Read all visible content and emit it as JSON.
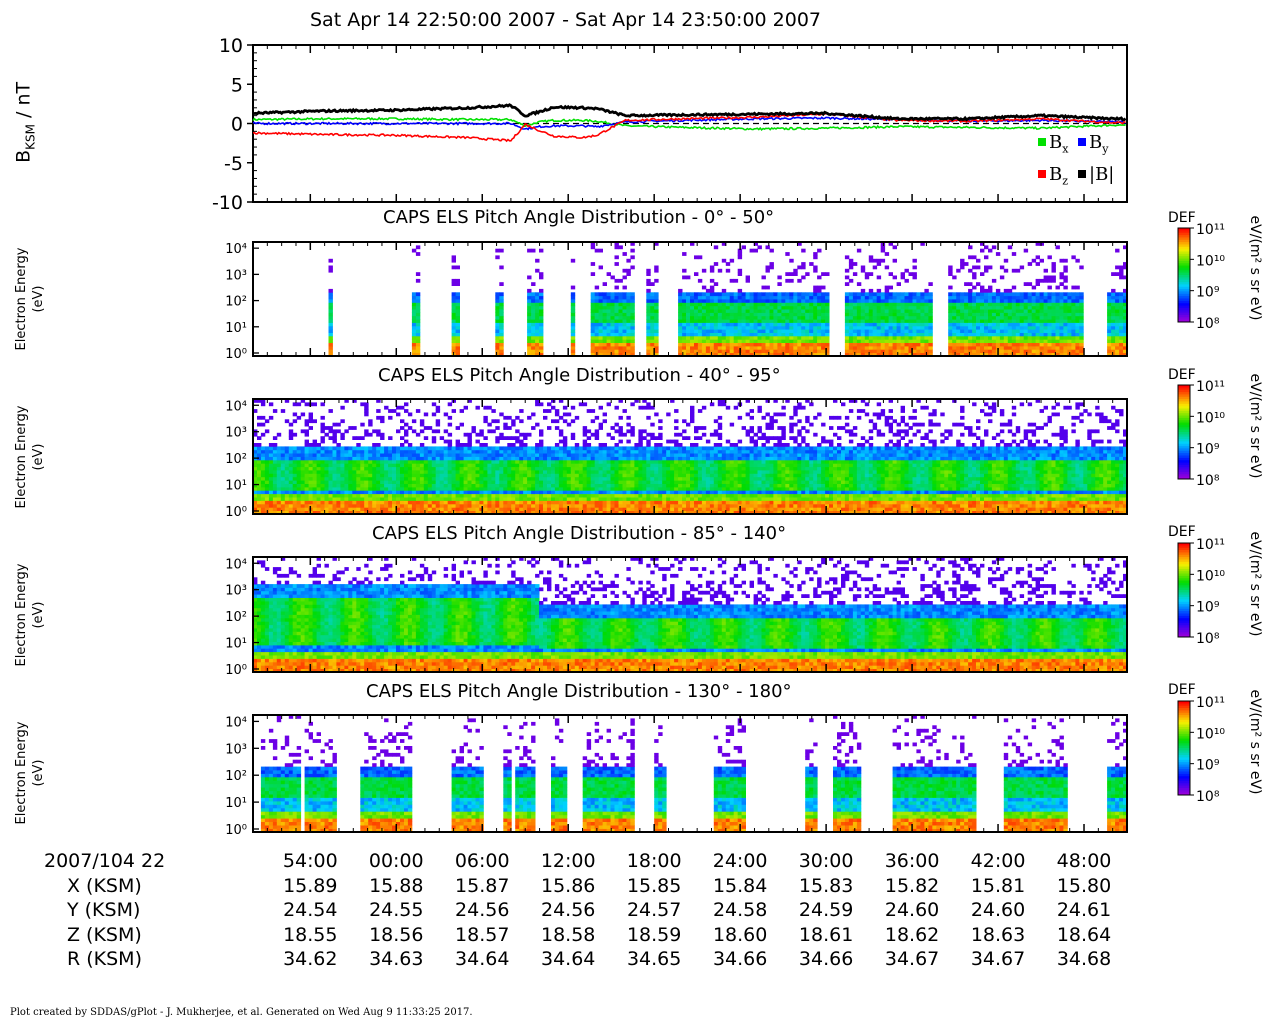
{
  "header": {
    "title": "Sat Apr 14 22:50:00 2007 - Sat Apr 14 23:50:00 2007"
  },
  "mag_panel": {
    "ylabel": "B",
    "ylabel_sub": "KSM",
    "ylabel_unit": " / nT",
    "legend": [
      {
        "label": "B",
        "sub": "x",
        "color": "#00e000"
      },
      {
        "label": "B",
        "sub": "y",
        "color": "#0000ff"
      },
      {
        "label": "B",
        "sub": "z",
        "color": "#ff0000"
      },
      {
        "label": "|B|",
        "sub": "",
        "color": "#000000"
      }
    ]
  },
  "spectrograms": [
    {
      "title": "CAPS ELS Pitch Angle Distribution - 0° - 50°"
    },
    {
      "title": "CAPS ELS Pitch Angle Distribution - 40° - 95°"
    },
    {
      "title": "CAPS ELS Pitch Angle Distribution - 85° - 140°"
    },
    {
      "title": "CAPS ELS Pitch Angle Distribution - 130° - 180°"
    }
  ],
  "energy_axis": {
    "line1": "Electron Energy",
    "line2": "(eV)"
  },
  "colorbar": {
    "def_label": "DEF",
    "unit_label": "eV/(m² s sr eV)",
    "ticks": [
      "10¹¹",
      "10¹⁰",
      "10⁹",
      "10⁸"
    ]
  },
  "time_axis": {
    "date_label": "2007/104 22",
    "row_labels": [
      "X (KSM)",
      "Y (KSM)",
      "Z (KSM)",
      "R (KSM)"
    ],
    "ticks": [
      {
        "t": "54:00",
        "x": "15.89",
        "y": "24.54",
        "z": "18.55",
        "r": "34.62"
      },
      {
        "t": "00:00",
        "x": "15.88",
        "y": "24.55",
        "z": "18.56",
        "r": "34.63"
      },
      {
        "t": "06:00",
        "x": "15.87",
        "y": "24.56",
        "z": "18.57",
        "r": "34.64"
      },
      {
        "t": "12:00",
        "x": "15.86",
        "y": "24.56",
        "z": "18.58",
        "r": "34.64"
      },
      {
        "t": "18:00",
        "x": "15.85",
        "y": "24.57",
        "z": "18.59",
        "r": "34.65"
      },
      {
        "t": "24:00",
        "x": "15.84",
        "y": "24.58",
        "z": "18.60",
        "r": "34.66"
      },
      {
        "t": "30:00",
        "x": "15.83",
        "y": "24.59",
        "z": "18.61",
        "r": "34.66"
      },
      {
        "t": "36:00",
        "x": "15.82",
        "y": "24.60",
        "z": "18.62",
        "r": "34.67"
      },
      {
        "t": "42:00",
        "x": "15.81",
        "y": "24.60",
        "z": "18.63",
        "r": "34.67"
      },
      {
        "t": "48:00",
        "x": "15.80",
        "y": "24.61",
        "z": "18.64",
        "r": "34.68"
      }
    ]
  },
  "footer": {
    "text": "Plot created by SDDAS/gPlot - J. Mukherjee, et al.  Generated on Wed Aug 9 11:33:25 2017."
  },
  "chart_data": {
    "type": "line",
    "title": "Sat Apr 14 22:50:00 2007 - Sat Apr 14 23:50:00 2007",
    "x_unit": "minutes after 22:50",
    "ylabel": "B KSM / nT",
    "ylim": [
      -10,
      10
    ],
    "yticks": [
      "10",
      "5",
      "0",
      "-5",
      "-10"
    ],
    "x": [
      0,
      5,
      10,
      15,
      18,
      19,
      20,
      21,
      23,
      24,
      26,
      30,
      35,
      40,
      45,
      50,
      55,
      60
    ],
    "series": [
      {
        "name": "Bx",
        "color": "#00e000",
        "values": [
          0.5,
          0.6,
          0.6,
          0.5,
          0.5,
          -0.3,
          0.2,
          0.4,
          0.4,
          0.3,
          -0.3,
          -0.5,
          -0.7,
          -0.6,
          -0.4,
          -0.5,
          -0.6,
          -0.2
        ]
      },
      {
        "name": "By",
        "color": "#0000ff",
        "values": [
          0,
          0,
          0,
          0,
          0,
          -0.7,
          -0.4,
          -0.3,
          -0.3,
          -0.4,
          0.2,
          0.4,
          0.6,
          0.7,
          0.5,
          0.3,
          0.4,
          0.2
        ]
      },
      {
        "name": "Bz",
        "color": "#ff0000",
        "values": [
          -1.2,
          -1.4,
          -1.5,
          -1.8,
          -2.2,
          -0.1,
          -0.9,
          -1.6,
          -1.8,
          -1.5,
          0.4,
          0.6,
          0.8,
          1.2,
          0.4,
          0.3,
          0.6,
          0.1
        ]
      },
      {
        "name": "|B|",
        "color": "#000000",
        "values": [
          1.3,
          1.6,
          1.7,
          2.0,
          2.3,
          1.0,
          1.5,
          2.1,
          2.0,
          1.9,
          1.0,
          1.1,
          1.2,
          1.3,
          0.6,
          0.6,
          1.0,
          0.6
        ]
      }
    ],
    "spectrograms": {
      "type": "heatmap",
      "ylabel": "Electron Energy (eV)",
      "y_ticks": [
        "10⁰",
        "10¹",
        "10²",
        "10³",
        "10⁴"
      ],
      "color_range_log10": [
        8,
        11
      ],
      "data_gaps_0_50": [
        [
          0,
          5.2
        ],
        [
          5.6,
          11.2
        ],
        [
          11.6,
          13.8
        ],
        [
          14.4,
          16.8
        ],
        [
          17.6,
          19.2
        ],
        [
          20.2,
          22.1
        ],
        [
          22.5,
          23.6
        ],
        [
          26.6,
          27.5
        ],
        [
          28.2,
          29.8
        ],
        [
          40.2,
          41.4
        ],
        [
          47.4,
          48.6
        ],
        [
          57.9,
          59.5
        ]
      ],
      "data_gaps_130_180": [
        [
          0,
          0.6
        ],
        [
          3.3,
          3.6
        ],
        [
          5.8,
          7.4
        ],
        [
          11.0,
          13.8
        ],
        [
          16.2,
          17.4
        ],
        [
          17.9,
          18.3
        ],
        [
          19.6,
          20.7
        ],
        [
          22.0,
          23.1
        ],
        [
          26.6,
          28.0
        ],
        [
          28.9,
          32.3
        ],
        [
          34.4,
          38.5
        ],
        [
          39.3,
          40.4
        ],
        [
          42.4,
          44.6
        ],
        [
          50.5,
          52.4
        ],
        [
          56.9,
          59.5
        ]
      ]
    }
  }
}
